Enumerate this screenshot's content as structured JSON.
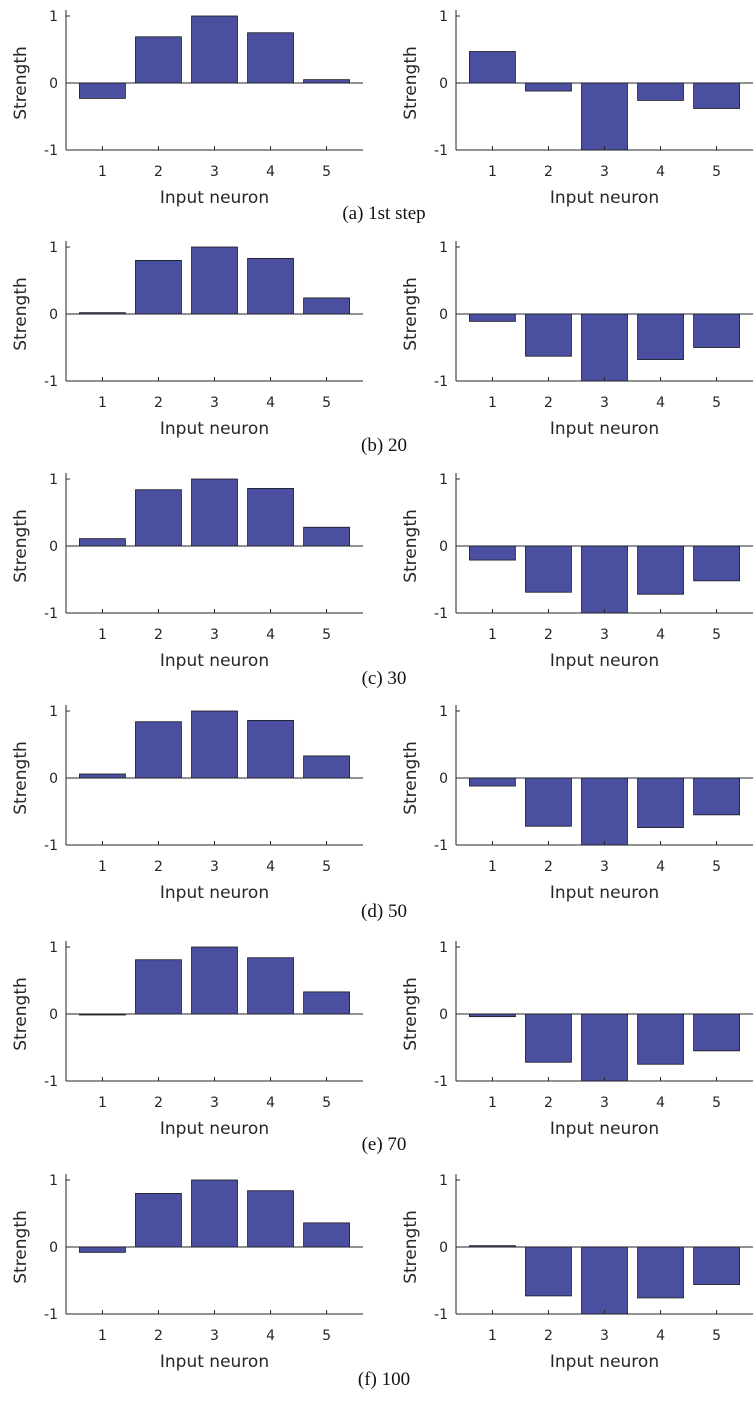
{
  "colors": {
    "bar_fill": "#4a4fa0",
    "bar_stroke": "#1a1a1a",
    "axis": "#262626"
  },
  "chart_data": [
    {
      "type": "bar",
      "categories": [
        "1",
        "2",
        "3",
        "4",
        "5"
      ],
      "values": [
        -0.23,
        0.69,
        1.0,
        0.75,
        0.05
      ],
      "xlabel": "Input neuron",
      "ylabel": "Strength",
      "ylim": [
        -1,
        1
      ],
      "yticks": [
        "-1",
        "0",
        "1"
      ],
      "caption": "(a) 1st step",
      "grid": false
    },
    {
      "type": "bar",
      "categories": [
        "1",
        "2",
        "3",
        "4",
        "5"
      ],
      "values": [
        0.47,
        -0.12,
        -1.0,
        -0.26,
        -0.38
      ],
      "xlabel": "Input neuron",
      "ylabel": "Strength",
      "ylim": [
        -1,
        1
      ],
      "yticks": [
        "-1",
        "0",
        "1"
      ],
      "grid": false
    },
    {
      "type": "bar",
      "categories": [
        "1",
        "2",
        "3",
        "4",
        "5"
      ],
      "values": [
        0.02,
        0.8,
        1.0,
        0.83,
        0.24
      ],
      "xlabel": "Input neuron",
      "ylabel": "Strength",
      "ylim": [
        -1,
        1
      ],
      "yticks": [
        "-1",
        "0",
        "1"
      ],
      "caption": "(b) 20",
      "grid": false
    },
    {
      "type": "bar",
      "categories": [
        "1",
        "2",
        "3",
        "4",
        "5"
      ],
      "values": [
        -0.11,
        -0.63,
        -1.0,
        -0.68,
        -0.5
      ],
      "xlabel": "Input neuron",
      "ylabel": "Strength",
      "ylim": [
        -1,
        1
      ],
      "yticks": [
        "-1",
        "0",
        "1"
      ],
      "grid": false
    },
    {
      "type": "bar",
      "categories": [
        "1",
        "2",
        "3",
        "4",
        "5"
      ],
      "values": [
        0.11,
        0.84,
        1.0,
        0.86,
        0.28
      ],
      "xlabel": "Input neuron",
      "ylabel": "Strength",
      "ylim": [
        -1,
        1
      ],
      "yticks": [
        "-1",
        "0",
        "1"
      ],
      "caption": "(c) 30",
      "grid": false
    },
    {
      "type": "bar",
      "categories": [
        "1",
        "2",
        "3",
        "4",
        "5"
      ],
      "values": [
        -0.21,
        -0.69,
        -1.0,
        -0.72,
        -0.52
      ],
      "xlabel": "Input neuron",
      "ylabel": "Strength",
      "ylim": [
        -1,
        1
      ],
      "yticks": [
        "-1",
        "0",
        "1"
      ],
      "grid": false
    },
    {
      "type": "bar",
      "categories": [
        "1",
        "2",
        "3",
        "4",
        "5"
      ],
      "values": [
        0.06,
        0.84,
        1.0,
        0.86,
        0.33
      ],
      "xlabel": "Input neuron",
      "ylabel": "Strength",
      "ylim": [
        -1,
        1
      ],
      "yticks": [
        "-1",
        "0",
        "1"
      ],
      "caption": "(d) 50",
      "grid": false
    },
    {
      "type": "bar",
      "categories": [
        "1",
        "2",
        "3",
        "4",
        "5"
      ],
      "values": [
        -0.12,
        -0.72,
        -1.0,
        -0.74,
        -0.55
      ],
      "xlabel": "Input neuron",
      "ylabel": "Strength",
      "ylim": [
        -1,
        1
      ],
      "yticks": [
        "-1",
        "0",
        "1"
      ],
      "grid": false
    },
    {
      "type": "bar",
      "categories": [
        "1",
        "2",
        "3",
        "4",
        "5"
      ],
      "values": [
        -0.01,
        0.81,
        1.0,
        0.84,
        0.33
      ],
      "xlabel": "Input neuron",
      "ylabel": "Strength",
      "ylim": [
        -1,
        1
      ],
      "yticks": [
        "-1",
        "0",
        "1"
      ],
      "caption": "(e) 70",
      "grid": false
    },
    {
      "type": "bar",
      "categories": [
        "1",
        "2",
        "3",
        "4",
        "5"
      ],
      "values": [
        -0.04,
        -0.72,
        -1.0,
        -0.75,
        -0.55
      ],
      "xlabel": "Input neuron",
      "ylabel": "Strength",
      "ylim": [
        -1,
        1
      ],
      "yticks": [
        "-1",
        "0",
        "1"
      ],
      "grid": false
    },
    {
      "type": "bar",
      "categories": [
        "1",
        "2",
        "3",
        "4",
        "5"
      ],
      "values": [
        -0.08,
        0.8,
        1.0,
        0.84,
        0.36
      ],
      "xlabel": "Input neuron",
      "ylabel": "Strength",
      "ylim": [
        -1,
        1
      ],
      "yticks": [
        "-1",
        "0",
        "1"
      ],
      "caption": "(f) 100",
      "grid": false
    },
    {
      "type": "bar",
      "categories": [
        "1",
        "2",
        "3",
        "4",
        "5"
      ],
      "values": [
        0.02,
        -0.73,
        -1.0,
        -0.76,
        -0.56
      ],
      "xlabel": "Input neuron",
      "ylabel": "Strength",
      "ylim": [
        -1,
        1
      ],
      "yticks": [
        "-1",
        "0",
        "1"
      ],
      "grid": false
    }
  ]
}
